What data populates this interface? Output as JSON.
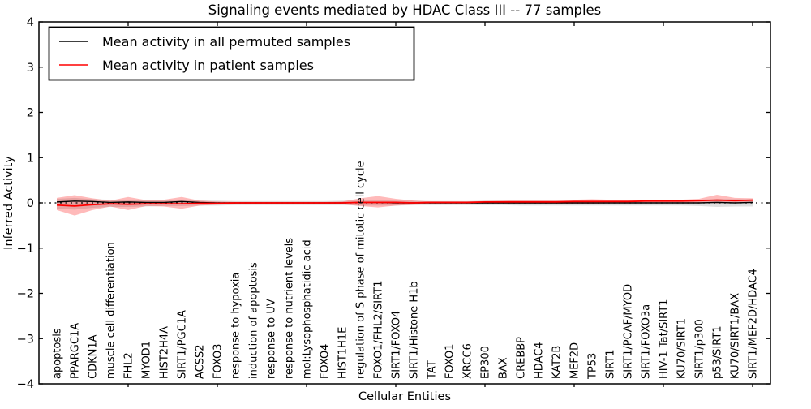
{
  "chart_data": {
    "type": "line",
    "title": "Signaling events mediated by HDAC Class III -- 77 samples",
    "xlabel": "Cellular Entities",
    "ylabel": "Inferred Activity",
    "ylim": [
      -4,
      4
    ],
    "yticks": [
      -4,
      -3,
      -2,
      -1,
      0,
      1,
      2,
      3,
      4
    ],
    "x_tick_every": 5,
    "grid": false,
    "legend_position": "upper left",
    "categories": [
      "apoptosis",
      "PPARGC1A",
      "CDKN1A",
      "muscle cell differentiation",
      "FHL2",
      "MYOD1",
      "HIST2H4A",
      "SIRT1/PGC1A",
      "ACSS2",
      "FOXO3",
      "response to hypoxia",
      "induction of apoptosis",
      "response to UV",
      "response to nutrient levels",
      "mol:Lysophosphatidic acid",
      "FOXO4",
      "HIST1H1E",
      "regulation of S phase of mitotic cell cycle",
      "FOXO1/FHL2/SIRT1",
      "SIRT1/FOXO4",
      "SIRT1/Histone H1b",
      "TAT",
      "FOXO1",
      "XRCC6",
      "EP300",
      "BAX",
      "CREBBP",
      "HDAC4",
      "KAT2B",
      "MEF2D",
      "TP53",
      "SIRT1",
      "SIRT1/PCAF/MYOD",
      "SIRT1/FOXO3a",
      "HIV-1 Tat/SIRT1",
      "KU70/SIRT1",
      "SIRT1/p300",
      "p53/SIRT1",
      "KU70/SIRT1/BAX",
      "SIRT1/MEF2D/HDAC4"
    ],
    "series": [
      {
        "name": "Mean activity in all permuted samples",
        "color": "#000000",
        "style": "solid",
        "values": [
          0.02,
          0.04,
          0.03,
          0.01,
          0.02,
          0.01,
          0.01,
          0.03,
          0.01,
          0,
          0,
          0,
          0,
          0,
          0,
          0,
          0,
          0.01,
          0.01,
          0,
          0,
          0,
          0,
          0,
          0,
          0,
          0,
          0,
          0,
          0,
          0,
          0,
          0,
          0,
          0,
          0,
          0,
          0.01,
          0,
          0.01
        ]
      },
      {
        "name": "Mean activity in patient samples",
        "color": "#ff0000",
        "style": "solid",
        "values": [
          -0.05,
          -0.07,
          -0.04,
          -0.02,
          -0.03,
          -0.02,
          -0.02,
          -0.02,
          -0.01,
          -0.01,
          0,
          0,
          0,
          0,
          0,
          0,
          0,
          0.01,
          0.01,
          0.01,
          0,
          0.01,
          0.01,
          0.01,
          0.02,
          0.02,
          0.02,
          0.02,
          0.02,
          0.03,
          0.03,
          0.03,
          0.03,
          0.04,
          0.04,
          0.04,
          0.05,
          0.06,
          0.05,
          0.06
        ]
      }
    ],
    "bands": [
      {
        "name": "permuted samples activity spread",
        "color": "#000000",
        "opacity": 0.12,
        "upper": [
          0.09,
          0.11,
          0.08,
          0.07,
          0.07,
          0.06,
          0.06,
          0.06,
          0.05,
          0.05,
          0.04,
          0.04,
          0.04,
          0.04,
          0.04,
          0.04,
          0.05,
          0.05,
          0.06,
          0.05,
          0.05,
          0.04,
          0.04,
          0.04,
          0.05,
          0.05,
          0.05,
          0.05,
          0.05,
          0.05,
          0.05,
          0.05,
          0.05,
          0.05,
          0.05,
          0.06,
          0.07,
          0.09,
          0.08,
          0.08
        ],
        "lower": [
          -0.13,
          -0.15,
          -0.11,
          -0.09,
          -0.09,
          -0.08,
          -0.07,
          -0.07,
          -0.06,
          -0.06,
          -0.05,
          -0.05,
          -0.05,
          -0.05,
          -0.05,
          -0.05,
          -0.05,
          -0.06,
          -0.06,
          -0.06,
          -0.05,
          -0.05,
          -0.05,
          -0.05,
          -0.05,
          -0.05,
          -0.06,
          -0.06,
          -0.06,
          -0.06,
          -0.06,
          -0.06,
          -0.06,
          -0.06,
          -0.06,
          -0.06,
          -0.07,
          -0.09,
          -0.08,
          -0.08
        ]
      },
      {
        "name": "patient samples activity spread",
        "color": "#ff0000",
        "opacity": 0.27,
        "upper": [
          0.11,
          0.17,
          0.1,
          0.05,
          0.13,
          0.06,
          0.07,
          0.13,
          0.05,
          0.03,
          0.02,
          0.02,
          0.02,
          0.02,
          0.02,
          0.02,
          0.03,
          0.1,
          0.15,
          0.09,
          0.05,
          0.03,
          0.03,
          0.03,
          0.04,
          0.05,
          0.06,
          0.06,
          0.07,
          0.07,
          0.08,
          0.07,
          0.07,
          0.06,
          0.06,
          0.07,
          0.09,
          0.18,
          0.11,
          0.1
        ],
        "lower": [
          -0.16,
          -0.28,
          -0.16,
          -0.08,
          -0.16,
          -0.07,
          -0.08,
          -0.13,
          -0.06,
          -0.04,
          -0.03,
          -0.02,
          -0.02,
          -0.02,
          -0.02,
          -0.02,
          -0.03,
          -0.07,
          -0.1,
          -0.06,
          -0.04,
          -0.03,
          -0.02,
          -0.02,
          -0.02,
          -0.02,
          -0.02,
          -0.02,
          -0.02,
          -0.02,
          -0.02,
          -0.01,
          -0.01,
          -0.01,
          0,
          0,
          0.01,
          -0.01,
          0.01,
          0.02
        ]
      }
    ],
    "zero_line": {
      "y": 0,
      "color": "#000000",
      "style": "dashed"
    }
  },
  "colors": {
    "axis": "#000000",
    "background": "#ffffff",
    "permuted_line": "#000000",
    "patient_line": "#ff0000"
  }
}
